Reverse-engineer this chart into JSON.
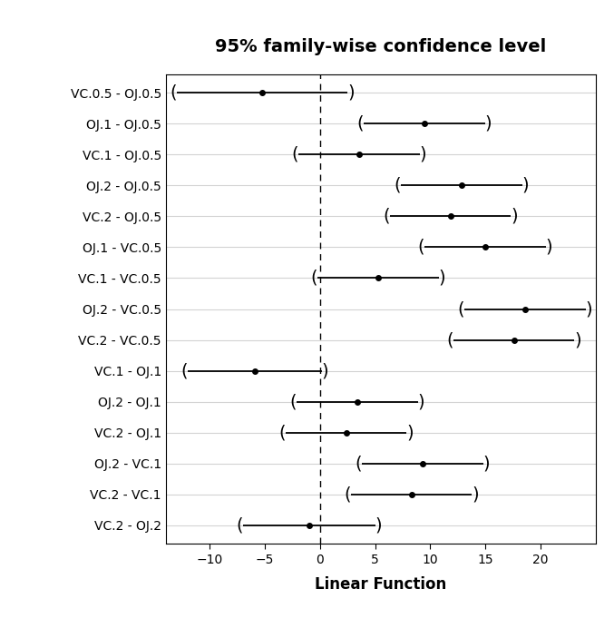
{
  "title": "95% family-wise confidence level",
  "xlabel": "Linear Function",
  "labels": [
    "VC.0.5 - OJ.0.5",
    "OJ.1 - OJ.0.5",
    "VC.1 - OJ.0.5",
    "OJ.2 - OJ.0.5",
    "VC.2 - OJ.0.5",
    "OJ.1 - VC.0.5",
    "VC.1 - VC.0.5",
    "OJ.2 - VC.0.5",
    "VC.2 - VC.0.5",
    "VC.1 - OJ.1",
    "OJ.2 - OJ.1",
    "VC.2 - OJ.1",
    "OJ.2 - VC.1",
    "VC.2 - VC.1",
    "VC.2 - OJ.2"
  ],
  "centers": [
    -5.25,
    9.47,
    3.54,
    12.83,
    11.83,
    14.97,
    5.25,
    18.58,
    17.58,
    -5.93,
    3.36,
    2.36,
    9.29,
    8.29,
    -1.0
  ],
  "lowers": [
    -13.0,
    3.97,
    -1.96,
    7.33,
    6.33,
    9.47,
    -0.25,
    13.08,
    12.08,
    -12.0,
    -2.14,
    -3.14,
    3.79,
    2.79,
    -7.0
  ],
  "uppers": [
    2.5,
    14.97,
    9.04,
    18.33,
    17.33,
    20.47,
    10.75,
    24.08,
    23.08,
    0.14,
    8.86,
    7.86,
    14.79,
    13.79,
    5.0
  ],
  "xlim": [
    -14,
    25
  ],
  "xticks": [
    -10,
    -5,
    0,
    5,
    10,
    15,
    20
  ],
  "vline_x": 0,
  "line_color": "black",
  "bg_color": "white",
  "plot_bg_color": "white",
  "grid_color": "#d3d3d3",
  "title_fontsize": 14,
  "label_fontsize": 10,
  "tick_fontsize": 10,
  "paren_fontsize": 14
}
